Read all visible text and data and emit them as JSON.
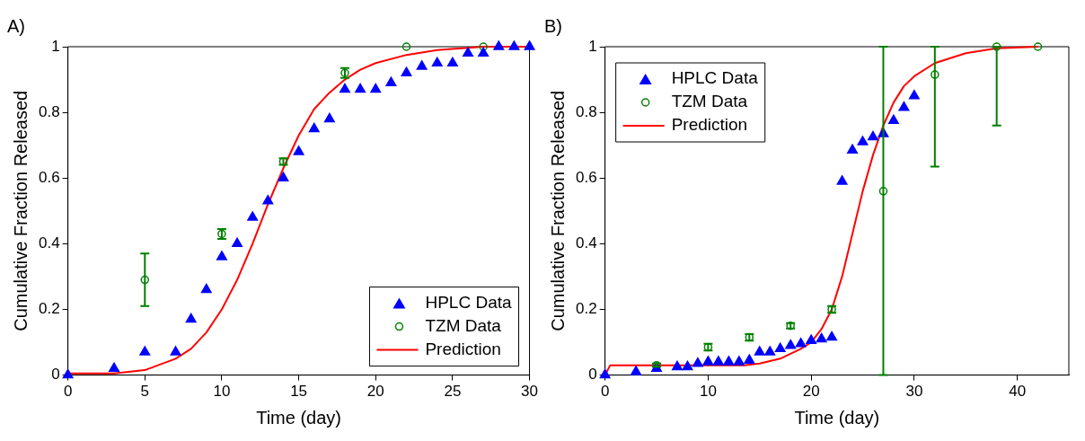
{
  "chart_data": [
    {
      "type": "scatter",
      "title": "A)",
      "xlabel": "Time (day)",
      "ylabel": "Cumulative Fraction Released",
      "xlim": [
        0,
        30
      ],
      "ylim": [
        0,
        1
      ],
      "xticks": [
        0,
        5,
        10,
        15,
        20,
        25,
        30
      ],
      "yticks": [
        0,
        0.2,
        0.4,
        0.6,
        0.8,
        1
      ],
      "grid": false,
      "legend": "bottom right",
      "series": [
        {
          "name": "HPLC Data",
          "marker": "triangle",
          "color": "#0000ff",
          "x": [
            0,
            3,
            5,
            7,
            8,
            9,
            10,
            11,
            12,
            13,
            14,
            15,
            16,
            17,
            18,
            19,
            20,
            21,
            22,
            23,
            24,
            25,
            26,
            27,
            28,
            29,
            30
          ],
          "values": [
            0,
            0.02,
            0.07,
            0.07,
            0.17,
            0.26,
            0.36,
            0.4,
            0.48,
            0.53,
            0.6,
            0.68,
            0.75,
            0.78,
            0.87,
            0.87,
            0.87,
            0.89,
            0.92,
            0.94,
            0.95,
            0.95,
            0.98,
            0.98,
            1,
            1,
            1
          ]
        },
        {
          "name": "TZM Data",
          "marker": "circle",
          "color": "#008000",
          "x": [
            5,
            10,
            14,
            18,
            22,
            27
          ],
          "values": [
            0.29,
            0.43,
            0.65,
            0.92,
            1,
            1
          ],
          "errors": [
            [
              0.21,
              0.37
            ],
            0.015,
            0.01,
            0.015,
            null,
            null
          ]
        },
        {
          "name": "Prediction",
          "type": "line",
          "marker": "none",
          "line_style": "solid",
          "color": "#ff0000",
          "x": [
            0,
            3,
            5,
            7,
            8,
            9,
            10,
            11,
            12,
            13,
            14,
            15,
            16,
            17,
            18,
            19,
            20,
            22,
            24,
            27,
            30
          ],
          "values": [
            0.005,
            0.005,
            0.015,
            0.05,
            0.08,
            0.13,
            0.2,
            0.29,
            0.4,
            0.52,
            0.63,
            0.73,
            0.81,
            0.86,
            0.9,
            0.93,
            0.95,
            0.975,
            0.99,
            1,
            1
          ]
        }
      ]
    },
    {
      "type": "scatter",
      "title": "B)",
      "xlabel": "Time (day)",
      "ylabel": "Cumulative Fraction Released",
      "xlim": [
        0,
        45
      ],
      "ylim": [
        0,
        1
      ],
      "xticks": [
        0,
        10,
        20,
        30,
        40
      ],
      "yticks": [
        0,
        0.2,
        0.4,
        0.6,
        0.8,
        1
      ],
      "grid": false,
      "legend": "top left",
      "series": [
        {
          "name": "HPLC Data",
          "marker": "triangle",
          "color": "#0000ff",
          "x": [
            0,
            3,
            5,
            7,
            8,
            9,
            10,
            11,
            12,
            13,
            14,
            15,
            16,
            17,
            18,
            19,
            20,
            21,
            22,
            23,
            24,
            25,
            26,
            27,
            28,
            29,
            30
          ],
          "values": [
            0,
            0.01,
            0.02,
            0.025,
            0.025,
            0.035,
            0.04,
            0.04,
            0.04,
            0.04,
            0.045,
            0.07,
            0.07,
            0.08,
            0.09,
            0.095,
            0.105,
            0.11,
            0.115,
            0.59,
            0.685,
            0.71,
            0.725,
            0.735,
            0.775,
            0.815,
            0.85
          ]
        },
        {
          "name": "TZM Data",
          "marker": "circle",
          "color": "#008000",
          "x": [
            5,
            10,
            14,
            18,
            22,
            27,
            32,
            38,
            42
          ],
          "values": [
            0.03,
            0.085,
            0.115,
            0.15,
            0.2,
            0.56,
            0.915,
            1,
            1
          ],
          "errors": [
            0.005,
            0.01,
            0.01,
            0.008,
            0.01,
            [
              0,
              1
            ],
            [
              0.635,
              1
            ],
            [
              0.76,
              1
            ],
            null
          ]
        },
        {
          "name": "Prediction",
          "type": "line",
          "marker": "none",
          "line_style": "solid",
          "color": "#ff0000",
          "x": [
            0,
            0.5,
            13.5,
            15,
            17,
            19,
            20,
            21,
            22,
            23,
            24,
            25,
            26,
            27,
            28,
            29,
            30,
            32,
            35,
            38,
            42
          ],
          "values": [
            0,
            0.03,
            0.03,
            0.035,
            0.05,
            0.08,
            0.1,
            0.14,
            0.2,
            0.3,
            0.43,
            0.56,
            0.67,
            0.76,
            0.83,
            0.88,
            0.91,
            0.95,
            0.98,
            0.995,
            1
          ]
        }
      ]
    }
  ]
}
